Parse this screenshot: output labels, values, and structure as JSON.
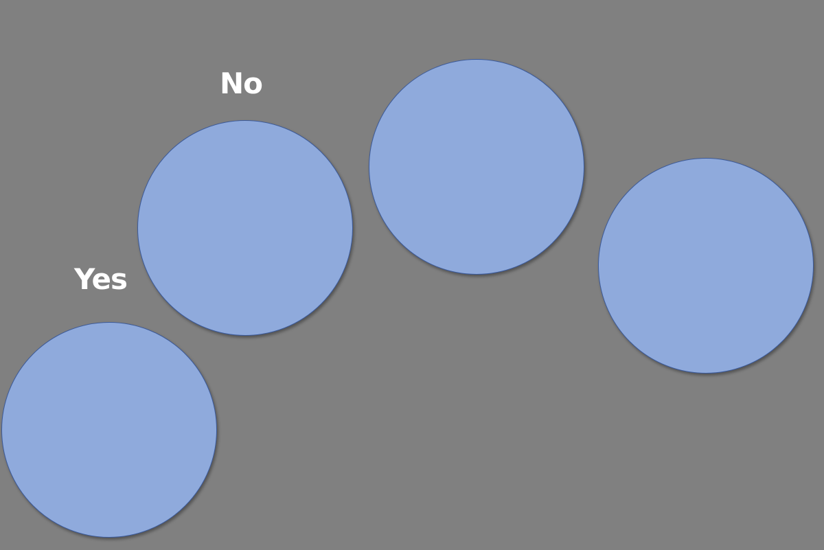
{
  "labels": {
    "yes": "Yes",
    "no": "No"
  },
  "colors": {
    "background": "#808080",
    "circle_fill": "#8faadc",
    "circle_stroke": "#3c5a99",
    "label_text": "#ffffff"
  },
  "shapes": [
    "circle",
    "circle",
    "circle",
    "circle"
  ]
}
